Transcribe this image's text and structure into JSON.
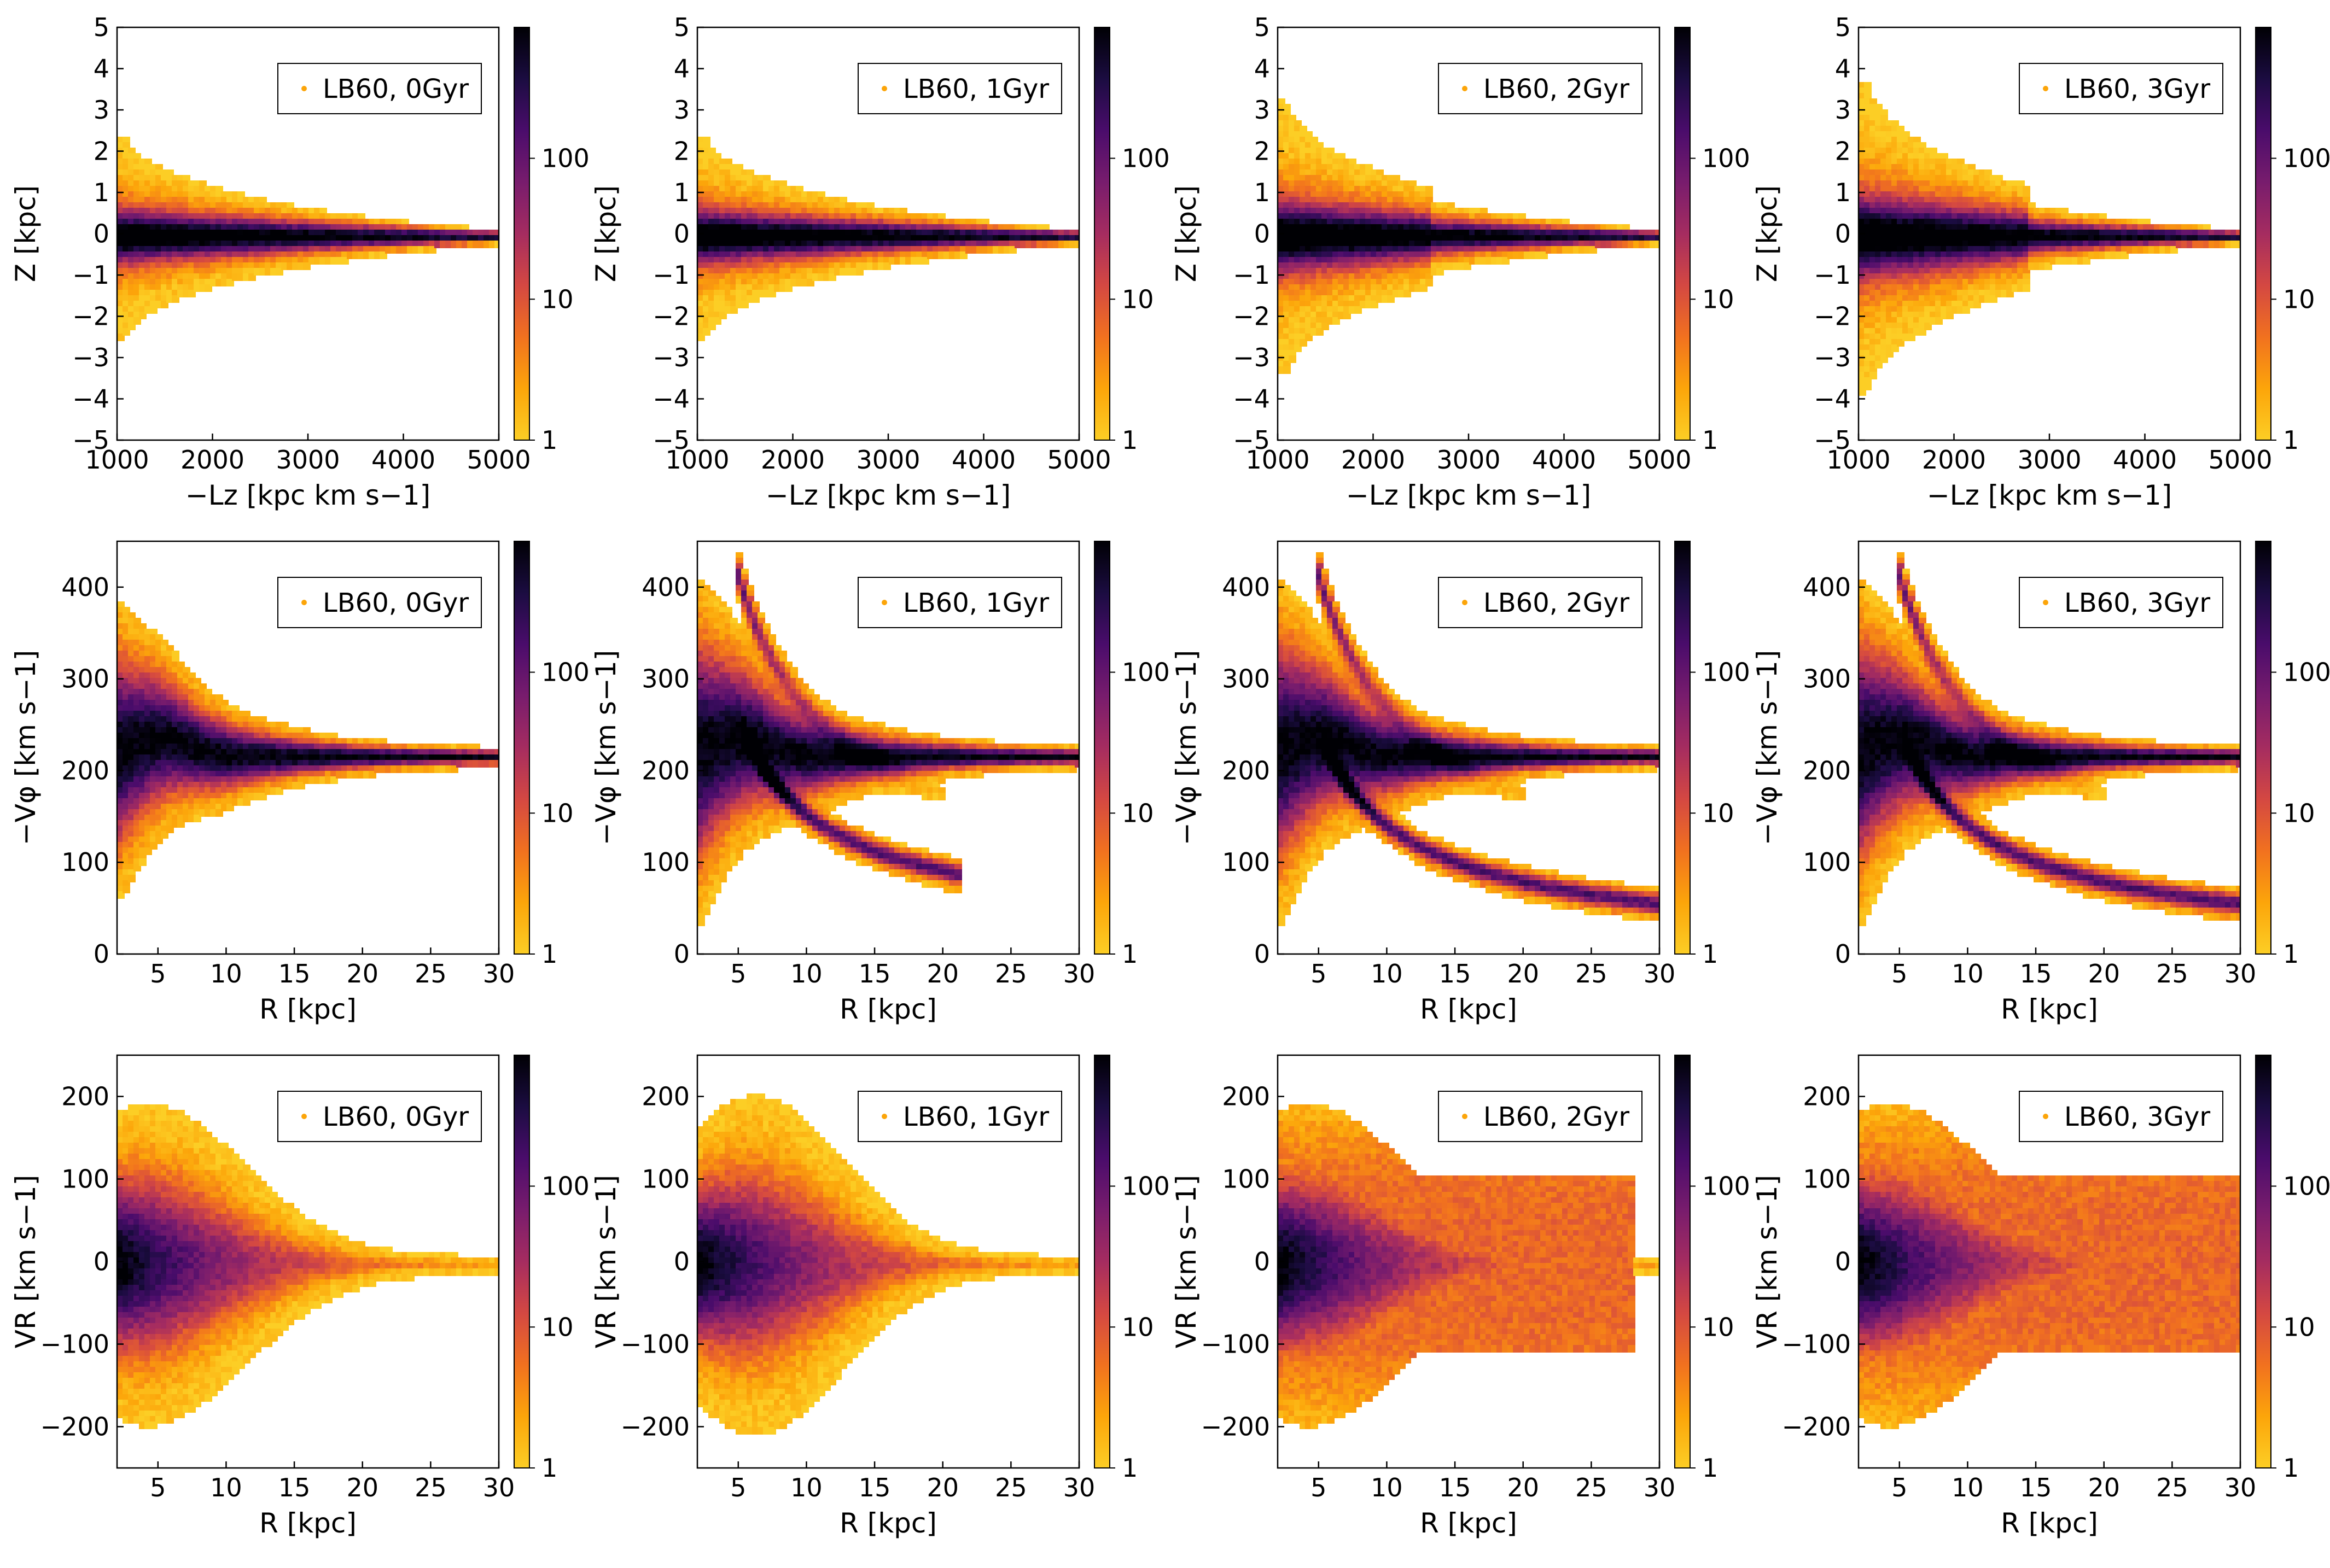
{
  "figure": {
    "rows": [
      "z_vs_lz",
      "vphi_vs_r",
      "vr_vs_r"
    ],
    "times": [
      "0Gyr",
      "1Gyr",
      "2Gyr",
      "3Gyr"
    ]
  },
  "colormap": {
    "name": "inferno_r",
    "stops": [
      "#fcce25",
      "#fca50a",
      "#f1711f",
      "#d44842",
      "#a52c60",
      "#781c6d",
      "#4a0c6b",
      "#1b0c41",
      "#000004"
    ],
    "colorbar_ticks": [
      "1",
      "10",
      "100"
    ],
    "colorbar_max": 850
  },
  "chart_data": [
    {
      "type": "heatmap",
      "row": 0,
      "col": 0,
      "legend": "LB60, 0Gyr",
      "xlabel": "−Lz [kpc km s−1]",
      "ylabel": "Z [kpc]",
      "xlim": [
        1000,
        5000
      ],
      "ylim": [
        -5,
        5
      ],
      "xticks": [
        "1000",
        "2000",
        "3000",
        "4000",
        "5000"
      ],
      "yticks": [
        "−5",
        "−4",
        "−3",
        "−2",
        "−1",
        "0",
        "1",
        "2",
        "3",
        "4",
        "5"
      ],
      "xtick_values": [
        1000,
        2000,
        3000,
        4000,
        5000
      ],
      "ytick_values": [
        -5,
        -4,
        -3,
        -2,
        -1,
        0,
        1,
        2,
        3,
        4,
        5
      ]
    },
    {
      "type": "heatmap",
      "row": 0,
      "col": 1,
      "legend": "LB60, 1Gyr",
      "xlabel": "−Lz [kpc km s−1]",
      "ylabel": "Z [kpc]",
      "xlim": [
        1000,
        5000
      ],
      "ylim": [
        -5,
        5
      ],
      "xticks": [
        "1000",
        "2000",
        "3000",
        "4000",
        "5000"
      ],
      "yticks": [
        "−5",
        "−4",
        "−3",
        "−2",
        "−1",
        "0",
        "1",
        "2",
        "3",
        "4",
        "5"
      ],
      "xtick_values": [
        1000,
        2000,
        3000,
        4000,
        5000
      ],
      "ytick_values": [
        -5,
        -4,
        -3,
        -2,
        -1,
        0,
        1,
        2,
        3,
        4,
        5
      ]
    },
    {
      "type": "heatmap",
      "row": 0,
      "col": 2,
      "legend": "LB60, 2Gyr",
      "xlabel": "−Lz [kpc km s−1]",
      "ylabel": "Z [kpc]",
      "xlim": [
        1000,
        5000
      ],
      "ylim": [
        -5,
        5
      ],
      "xticks": [
        "1000",
        "2000",
        "3000",
        "4000",
        "5000"
      ],
      "yticks": [
        "−5",
        "−4",
        "−3",
        "−2",
        "−1",
        "0",
        "1",
        "2",
        "3",
        "4",
        "5"
      ],
      "xtick_values": [
        1000,
        2000,
        3000,
        4000,
        5000
      ],
      "ytick_values": [
        -5,
        -4,
        -3,
        -2,
        -1,
        0,
        1,
        2,
        3,
        4,
        5
      ]
    },
    {
      "type": "heatmap",
      "row": 0,
      "col": 3,
      "legend": "LB60, 3Gyr",
      "xlabel": "−Lz [kpc km s−1]",
      "ylabel": "Z [kpc]",
      "xlim": [
        1000,
        5000
      ],
      "ylim": [
        -5,
        5
      ],
      "xticks": [
        "1000",
        "2000",
        "3000",
        "4000",
        "5000"
      ],
      "yticks": [
        "−5",
        "−4",
        "−3",
        "−2",
        "−1",
        "0",
        "1",
        "2",
        "3",
        "4",
        "5"
      ],
      "xtick_values": [
        1000,
        2000,
        3000,
        4000,
        5000
      ],
      "ytick_values": [
        -5,
        -4,
        -3,
        -2,
        -1,
        0,
        1,
        2,
        3,
        4,
        5
      ]
    },
    {
      "type": "heatmap",
      "row": 1,
      "col": 0,
      "legend": "LB60, 0Gyr",
      "xlabel": "R [kpc]",
      "ylabel": "−Vφ [km s−1]",
      "xlim": [
        2,
        30
      ],
      "ylim": [
        0,
        450
      ],
      "xticks": [
        "5",
        "10",
        "15",
        "20",
        "25",
        "30"
      ],
      "yticks": [
        "0",
        "100",
        "200",
        "300",
        "400"
      ],
      "xtick_values": [
        5,
        10,
        15,
        20,
        25,
        30
      ],
      "ytick_values": [
        0,
        100,
        200,
        300,
        400
      ]
    },
    {
      "type": "heatmap",
      "row": 1,
      "col": 1,
      "legend": "LB60, 1Gyr",
      "xlabel": "R [kpc]",
      "ylabel": "−Vφ [km s−1]",
      "xlim": [
        2,
        30
      ],
      "ylim": [
        0,
        450
      ],
      "xticks": [
        "5",
        "10",
        "15",
        "20",
        "25",
        "30"
      ],
      "yticks": [
        "0",
        "100",
        "200",
        "300",
        "400"
      ],
      "xtick_values": [
        5,
        10,
        15,
        20,
        25,
        30
      ],
      "ytick_values": [
        0,
        100,
        200,
        300,
        400
      ]
    },
    {
      "type": "heatmap",
      "row": 1,
      "col": 2,
      "legend": "LB60, 2Gyr",
      "xlabel": "R [kpc]",
      "ylabel": "−Vφ [km s−1]",
      "xlim": [
        2,
        30
      ],
      "ylim": [
        0,
        450
      ],
      "xticks": [
        "5",
        "10",
        "15",
        "20",
        "25",
        "30"
      ],
      "yticks": [
        "0",
        "100",
        "200",
        "300",
        "400"
      ],
      "xtick_values": [
        5,
        10,
        15,
        20,
        25,
        30
      ],
      "ytick_values": [
        0,
        100,
        200,
        300,
        400
      ]
    },
    {
      "type": "heatmap",
      "row": 1,
      "col": 3,
      "legend": "LB60, 3Gyr",
      "xlabel": "R [kpc]",
      "ylabel": "−Vφ [km s−1]",
      "xlim": [
        2,
        30
      ],
      "ylim": [
        0,
        450
      ],
      "xticks": [
        "5",
        "10",
        "15",
        "20",
        "25",
        "30"
      ],
      "yticks": [
        "0",
        "100",
        "200",
        "300",
        "400"
      ],
      "xtick_values": [
        5,
        10,
        15,
        20,
        25,
        30
      ],
      "ytick_values": [
        0,
        100,
        200,
        300,
        400
      ]
    },
    {
      "type": "heatmap",
      "row": 2,
      "col": 0,
      "legend": "LB60, 0Gyr",
      "xlabel": "R [kpc]",
      "ylabel": "VR [km s−1]",
      "xlim": [
        2,
        30
      ],
      "ylim": [
        -250,
        250
      ],
      "xticks": [
        "5",
        "10",
        "15",
        "20",
        "25",
        "30"
      ],
      "yticks": [
        "−200",
        "−100",
        "0",
        "100",
        "200"
      ],
      "xtick_values": [
        5,
        10,
        15,
        20,
        25,
        30
      ],
      "ytick_values": [
        -200,
        -100,
        0,
        100,
        200
      ]
    },
    {
      "type": "heatmap",
      "row": 2,
      "col": 1,
      "legend": "LB60, 1Gyr",
      "xlabel": "R [kpc]",
      "ylabel": "VR [km s−1]",
      "xlim": [
        2,
        30
      ],
      "ylim": [
        -250,
        250
      ],
      "xticks": [
        "5",
        "10",
        "15",
        "20",
        "25",
        "30"
      ],
      "yticks": [
        "−200",
        "−100",
        "0",
        "100",
        "200"
      ],
      "xtick_values": [
        5,
        10,
        15,
        20,
        25,
        30
      ],
      "ytick_values": [
        -200,
        -100,
        0,
        100,
        200
      ]
    },
    {
      "type": "heatmap",
      "row": 2,
      "col": 2,
      "legend": "LB60, 2Gyr",
      "xlabel": "R [kpc]",
      "ylabel": "VR [km s−1]",
      "xlim": [
        2,
        30
      ],
      "ylim": [
        -250,
        250
      ],
      "xticks": [
        "5",
        "10",
        "15",
        "20",
        "25",
        "30"
      ],
      "yticks": [
        "−200",
        "−100",
        "0",
        "100",
        "200"
      ],
      "xtick_values": [
        5,
        10,
        15,
        20,
        25,
        30
      ],
      "ytick_values": [
        -200,
        -100,
        0,
        100,
        200
      ]
    },
    {
      "type": "heatmap",
      "row": 2,
      "col": 3,
      "legend": "LB60, 3Gyr",
      "xlabel": "R [kpc]",
      "ylabel": "VR [km s−1]",
      "xlim": [
        2,
        30
      ],
      "ylim": [
        -250,
        250
      ],
      "xticks": [
        "5",
        "10",
        "15",
        "20",
        "25",
        "30"
      ],
      "yticks": [
        "−200",
        "−100",
        "0",
        "100",
        "200"
      ],
      "xtick_values": [
        5,
        10,
        15,
        20,
        25,
        30
      ],
      "ytick_values": [
        -200,
        -100,
        0,
        100,
        200
      ]
    }
  ]
}
